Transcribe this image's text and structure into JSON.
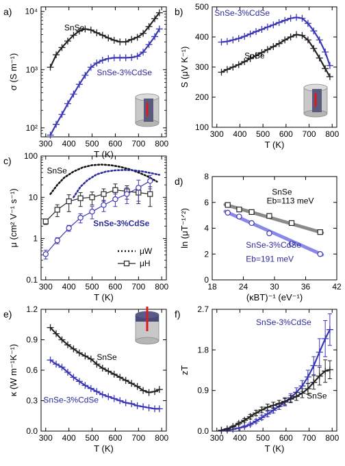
{
  "colors": {
    "black_series": "#222222",
    "blue_series": "#3a36b8",
    "blue_fill": "#8a88e6",
    "grey_fill": "#8a8a8a"
  },
  "chart_data": [
    {
      "panel": "a)",
      "type": "line",
      "yscale": "log",
      "xlabel": "T (K)",
      "ylabel": "σ (S m⁻¹)",
      "xlim": [
        280,
        820
      ],
      "ylim": [
        70,
        12000
      ],
      "xticks": [
        300,
        400,
        500,
        600,
        700,
        800
      ],
      "yticks": [
        100,
        1000,
        10000
      ],
      "ytick_labels": [
        "10²",
        "10³",
        "10⁴"
      ],
      "series": [
        {
          "name": "SnSe",
          "marker": "plus",
          "color": "#222222",
          "label_pos": [
            380,
            4700
          ],
          "x": [
            320,
            345,
            370,
            395,
            420,
            445,
            470,
            495,
            520,
            545,
            570,
            595,
            620,
            645,
            670,
            695,
            720,
            745,
            770,
            790
          ],
          "y": [
            1100,
            1800,
            2400,
            3100,
            3900,
            4600,
            5000,
            4800,
            4300,
            3900,
            3500,
            3200,
            3000,
            3000,
            3300,
            3600,
            4200,
            5500,
            7500,
            9500
          ]
        },
        {
          "name": "SnSe-3%CdSe",
          "marker": "plus",
          "color": "#3a36b8",
          "label_pos": [
            520,
            800
          ],
          "x": [
            320,
            345,
            370,
            395,
            420,
            445,
            470,
            495,
            520,
            545,
            570,
            595,
            620,
            645,
            670,
            695,
            720,
            745,
            770,
            790
          ],
          "y": [
            75,
            115,
            170,
            260,
            380,
            560,
            800,
            1100,
            1300,
            1450,
            1550,
            1600,
            1600,
            1600,
            1620,
            1700,
            2000,
            2700,
            3700,
            5000
          ]
        }
      ]
    },
    {
      "panel": "b)",
      "type": "line",
      "xlabel": "T (K)",
      "ylabel": "S (μV K⁻¹)",
      "xlim": [
        280,
        820
      ],
      "ylim": [
        100,
        500
      ],
      "xticks": [
        300,
        400,
        500,
        600,
        700,
        800
      ],
      "yticks": [
        100,
        200,
        300,
        400,
        500
      ],
      "series": [
        {
          "name": "SnSe-3%CdSe",
          "marker": "plus",
          "color": "#3a36b8",
          "label_pos": [
            290,
            470
          ],
          "x": [
            320,
            345,
            370,
            395,
            420,
            445,
            470,
            495,
            520,
            545,
            570,
            595,
            620,
            645,
            670,
            695,
            720,
            745,
            770,
            790
          ],
          "y": [
            383,
            385,
            390,
            395,
            402,
            410,
            418,
            425,
            433,
            440,
            448,
            455,
            462,
            465,
            462,
            445,
            420,
            390,
            350,
            305
          ]
        },
        {
          "name": "SnSe",
          "marker": "plus",
          "color": "#222222",
          "label_pos": [
            420,
            328
          ],
          "x": [
            320,
            345,
            370,
            395,
            420,
            445,
            470,
            495,
            520,
            545,
            570,
            595,
            620,
            645,
            670,
            695,
            720,
            745,
            770,
            790
          ],
          "y": [
            283,
            292,
            300,
            308,
            318,
            328,
            338,
            348,
            358,
            368,
            378,
            390,
            400,
            408,
            405,
            390,
            362,
            330,
            295,
            268
          ]
        }
      ]
    },
    {
      "panel": "c)",
      "type": "line",
      "yscale": "log",
      "xlabel": "T (K)",
      "ylabel": "μ (cm² V⁻¹ s⁻¹)",
      "xlim": [
        280,
        820
      ],
      "ylim": [
        0.1,
        100
      ],
      "xticks": [
        300,
        400,
        500,
        600,
        700,
        800
      ],
      "yticks": [
        0.1,
        1,
        10,
        100
      ],
      "ytick_labels": [
        "0.1",
        "1",
        "10",
        "100"
      ],
      "legend": [
        "μW",
        "μH"
      ],
      "legend_position": "bottom-right",
      "series": [
        {
          "name": "SnSe μW",
          "style": "dotted",
          "color": "#111111",
          "x": [
            320,
            350,
            380,
            420,
            460,
            500,
            540,
            580,
            620,
            660,
            700,
            740,
            780
          ],
          "y": [
            12,
            20,
            30,
            42,
            53,
            60,
            62,
            60,
            55,
            48,
            40,
            32,
            24
          ]
        },
        {
          "name": "SnSe-3%CdSe μW",
          "style": "dotted",
          "color": "#2a2a9a",
          "x": [
            420,
            450,
            480,
            520,
            560,
            600,
            640,
            680,
            720,
            760,
            790
          ],
          "y": [
            10,
            18,
            26,
            36,
            42,
            45,
            46,
            45,
            42,
            38,
            35
          ]
        },
        {
          "name": "SnSe μH",
          "marker": "square",
          "color": "#222222",
          "label_pos": [
            305,
            38
          ],
          "x": [
            300,
            350,
            400,
            450,
            500,
            550,
            600,
            650,
            700,
            750
          ],
          "y": [
            2.6,
            5.0,
            8.0,
            9.5,
            10.0,
            12.0,
            15.0,
            14.0,
            13.0,
            12.0
          ],
          "yerr": [
            0.4,
            1.6,
            3.5,
            3.5,
            3.5,
            4.0,
            6.0,
            5.0,
            6.0,
            6.0
          ]
        },
        {
          "name": "SnSe-3%CdSe μH",
          "marker": "circle",
          "color": "#3a36b8",
          "label_pos": [
            505,
            2.0
          ],
          "x": [
            300,
            350,
            400,
            450,
            500,
            550,
            600,
            650,
            700,
            750
          ],
          "y": [
            0.42,
            0.9,
            1.8,
            3.2,
            4.5,
            6.5,
            9.0,
            12.0,
            17.0,
            25.0
          ],
          "yerr": [
            0.1,
            0.15,
            0.3,
            0.8,
            1.5,
            2.0,
            3.0,
            5.0,
            9.0,
            9.0
          ]
        }
      ]
    },
    {
      "panel": "d)",
      "type": "scatter",
      "xlabel": "(κBT)⁻¹ (eV⁻¹)",
      "ylabel": "ln (μT⁻¹ᐟ²)",
      "xlim": [
        18,
        42
      ],
      "ylim": [
        0,
        8
      ],
      "xticks": [
        18,
        24,
        30,
        36,
        42
      ],
      "yticks": [
        0,
        2,
        4,
        6,
        8
      ],
      "annotations": [
        "SnSe",
        "Eb=113 meV",
        "SnSe-3%CdSe",
        "Eb=191 meV"
      ],
      "series": [
        {
          "name": "SnSe",
          "marker": "square",
          "color": "#222222",
          "x": [
            21.0,
            23.2,
            25.6,
            29.0,
            33.3,
            38.8
          ],
          "y": [
            5.8,
            5.45,
            5.25,
            4.95,
            4.4,
            3.7
          ],
          "fit": [
            [
              20.5,
              5.83
            ],
            [
              39.2,
              3.65
            ]
          ]
        },
        {
          "name": "SnSe-3%CdSe",
          "marker": "circle",
          "color": "#3a36b8",
          "x": [
            21.0,
            23.2,
            25.6,
            29.0,
            33.3,
            38.8
          ],
          "y": [
            5.2,
            4.9,
            4.4,
            3.6,
            2.8,
            2.0
          ],
          "fit": [
            [
              20.5,
              5.3
            ],
            [
              39.2,
              1.95
            ]
          ]
        }
      ]
    },
    {
      "panel": "e)",
      "type": "line",
      "xlabel": "T (K)",
      "ylabel": "κ (W m⁻¹K⁻¹)",
      "xlim": [
        280,
        820
      ],
      "ylim": [
        0,
        1.2
      ],
      "xticks": [
        300,
        400,
        500,
        600,
        700,
        800
      ],
      "yticks": [
        0,
        0.3,
        0.6,
        0.9,
        1.2
      ],
      "ytick_labels": [
        "0.0",
        "0.3",
        "0.6",
        "0.9",
        "1.2"
      ],
      "series": [
        {
          "name": "SnSe",
          "marker": "plus",
          "color": "#222222",
          "label_pos": [
            520,
            0.7
          ],
          "x": [
            320,
            345,
            370,
            395,
            420,
            445,
            470,
            495,
            520,
            545,
            570,
            595,
            620,
            645,
            670,
            695,
            720,
            745,
            770,
            790
          ],
          "y": [
            1.02,
            0.96,
            0.9,
            0.85,
            0.81,
            0.77,
            0.74,
            0.71,
            0.66,
            0.62,
            0.59,
            0.56,
            0.53,
            0.5,
            0.47,
            0.44,
            0.4,
            0.38,
            0.39,
            0.41
          ]
        },
        {
          "name": "SnSe-3%CdSe",
          "marker": "plus",
          "color": "#3a36b8",
          "label_pos": [
            290,
            0.28
          ],
          "x": [
            320,
            345,
            370,
            395,
            420,
            445,
            470,
            495,
            520,
            545,
            570,
            595,
            620,
            645,
            670,
            695,
            720,
            745,
            770,
            790
          ],
          "y": [
            0.7,
            0.66,
            0.63,
            0.58,
            0.53,
            0.49,
            0.45,
            0.42,
            0.39,
            0.36,
            0.34,
            0.32,
            0.3,
            0.28,
            0.27,
            0.25,
            0.24,
            0.23,
            0.22,
            0.22
          ]
        }
      ]
    },
    {
      "panel": "f)",
      "type": "line",
      "xlabel": "T (K)",
      "ylabel": "zT",
      "xlim": [
        280,
        820
      ],
      "ylim": [
        0,
        2.7
      ],
      "xticks": [
        300,
        400,
        500,
        600,
        700,
        800
      ],
      "yticks": [
        0,
        0.9,
        1.8,
        2.7
      ],
      "ytick_labels": [
        "0.0",
        "0.9",
        "1.8",
        "2.7"
      ],
      "series": [
        {
          "name": "SnSe-3%CdSe",
          "marker": "plus",
          "color": "#3a36b8",
          "label_pos": [
            470,
            2.35
          ],
          "x": [
            320,
            345,
            370,
            395,
            420,
            445,
            470,
            495,
            520,
            545,
            570,
            595,
            620,
            645,
            670,
            695,
            720,
            745,
            770,
            790
          ],
          "y": [
            0.01,
            0.02,
            0.04,
            0.07,
            0.1,
            0.15,
            0.22,
            0.3,
            0.38,
            0.46,
            0.55,
            0.64,
            0.74,
            0.86,
            1.0,
            1.2,
            1.45,
            1.75,
            2.05,
            2.25
          ],
          "yerr": [
            0,
            0,
            0,
            0,
            0.02,
            0.03,
            0.04,
            0.05,
            0.06,
            0.06,
            0.07,
            0.08,
            0.09,
            0.1,
            0.12,
            0.15,
            0.2,
            0.3,
            0.4,
            0.35
          ]
        },
        {
          "name": "SnSe",
          "marker": "plus",
          "color": "#222222",
          "label_pos": [
            690,
            0.72
          ],
          "x": [
            320,
            345,
            370,
            395,
            420,
            445,
            470,
            495,
            520,
            545,
            570,
            595,
            620,
            645,
            670,
            695,
            720,
            745,
            770,
            790
          ],
          "y": [
            0.02,
            0.05,
            0.1,
            0.17,
            0.24,
            0.32,
            0.4,
            0.47,
            0.53,
            0.57,
            0.61,
            0.66,
            0.71,
            0.77,
            0.84,
            0.94,
            1.08,
            1.22,
            1.33,
            1.36
          ],
          "yerr": [
            0,
            0.01,
            0.02,
            0.03,
            0.04,
            0.05,
            0.06,
            0.06,
            0.07,
            0.07,
            0.07,
            0.08,
            0.08,
            0.09,
            0.1,
            0.12,
            0.15,
            0.2,
            0.25,
            0.2
          ]
        }
      ]
    }
  ]
}
